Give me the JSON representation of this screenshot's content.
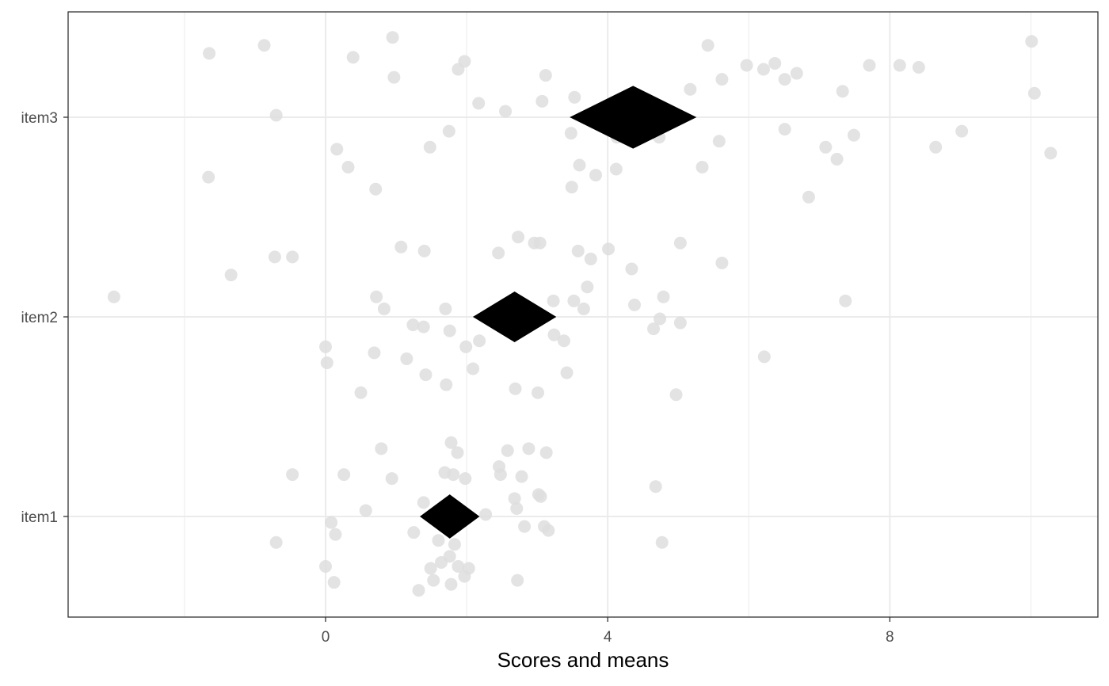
{
  "chart_data": {
    "type": "scatter",
    "title": "",
    "xlabel": "Scores and means",
    "ylabel": "",
    "xlim": [
      -3.65,
      10.95
    ],
    "x_ticks": [
      0,
      4,
      8
    ],
    "x_tick_labels": [
      "0",
      "4",
      "8"
    ],
    "categories": [
      "item1",
      "item2",
      "item3"
    ],
    "grid": true,
    "legend": "none",
    "colors": {
      "points": "#dedede",
      "means": "#000000",
      "grid": "#ebebeb",
      "panel_border": "#333333",
      "tick_text": "#4d4d4d"
    },
    "means": [
      {
        "category": "item1",
        "x": 1.76
      },
      {
        "category": "item2",
        "x": 2.68
      },
      {
        "category": "item3",
        "x": 4.36
      }
    ],
    "series": [
      {
        "category": "item1",
        "points": [
          [
            1.78,
            0.37
          ],
          [
            1.87,
            0.32
          ],
          [
            0.79,
            0.34
          ],
          [
            2.58,
            0.33
          ],
          [
            2.88,
            0.34
          ],
          [
            3.13,
            0.32
          ],
          [
            -0.47,
            0.21
          ],
          [
            0.26,
            0.21
          ],
          [
            0.94,
            0.19
          ],
          [
            1.69,
            0.22
          ],
          [
            1.81,
            0.21
          ],
          [
            1.98,
            0.19
          ],
          [
            2.46,
            0.25
          ],
          [
            2.48,
            0.21
          ],
          [
            2.78,
            0.2
          ],
          [
            4.68,
            0.15
          ],
          [
            3.02,
            0.11
          ],
          [
            3.05,
            0.1
          ],
          [
            2.68,
            0.09
          ],
          [
            1.39,
            0.07
          ],
          [
            0.57,
            0.03
          ],
          [
            2.27,
            0.01
          ],
          [
            2.71,
            0.04
          ],
          [
            0.08,
            -0.03
          ],
          [
            0.14,
            -0.09
          ],
          [
            1.25,
            -0.08
          ],
          [
            2.82,
            -0.05
          ],
          [
            3.1,
            -0.05
          ],
          [
            3.16,
            -0.07
          ],
          [
            -0.7,
            -0.13
          ],
          [
            1.6,
            -0.12
          ],
          [
            1.83,
            -0.14
          ],
          [
            4.77,
            -0.13
          ],
          [
            0.0,
            -0.25
          ],
          [
            0.12,
            -0.33
          ],
          [
            1.49,
            -0.26
          ],
          [
            1.53,
            -0.32
          ],
          [
            1.64,
            -0.23
          ],
          [
            1.76,
            -0.2
          ],
          [
            1.88,
            -0.25
          ],
          [
            2.03,
            -0.26
          ],
          [
            1.97,
            -0.3
          ],
          [
            1.32,
            -0.37
          ],
          [
            1.78,
            -0.34
          ],
          [
            2.72,
            -0.32
          ]
        ]
      },
      {
        "category": "item2",
        "points": [
          [
            -3.0,
            0.1
          ],
          [
            -1.34,
            0.21
          ],
          [
            -0.72,
            0.3
          ],
          [
            -0.47,
            0.3
          ],
          [
            1.07,
            0.35
          ],
          [
            1.4,
            0.33
          ],
          [
            2.45,
            0.32
          ],
          [
            2.73,
            0.4
          ],
          [
            2.96,
            0.37
          ],
          [
            3.04,
            0.37
          ],
          [
            3.58,
            0.33
          ],
          [
            3.76,
            0.29
          ],
          [
            4.01,
            0.34
          ],
          [
            5.03,
            0.37
          ],
          [
            5.62,
            0.27
          ],
          [
            4.34,
            0.24
          ],
          [
            0.72,
            0.1
          ],
          [
            0.83,
            0.04
          ],
          [
            1.7,
            0.04
          ],
          [
            3.23,
            0.08
          ],
          [
            3.52,
            0.08
          ],
          [
            3.66,
            0.04
          ],
          [
            3.71,
            0.15
          ],
          [
            4.38,
            0.06
          ],
          [
            4.79,
            0.1
          ],
          [
            7.37,
            0.08
          ],
          [
            1.24,
            -0.04
          ],
          [
            1.39,
            -0.05
          ],
          [
            1.76,
            -0.07
          ],
          [
            2.18,
            -0.12
          ],
          [
            1.99,
            -0.15
          ],
          [
            3.24,
            -0.09
          ],
          [
            3.38,
            -0.12
          ],
          [
            4.65,
            -0.06
          ],
          [
            4.74,
            -0.01
          ],
          [
            5.03,
            -0.03
          ],
          [
            0.0,
            -0.15
          ],
          [
            0.02,
            -0.23
          ],
          [
            0.69,
            -0.18
          ],
          [
            1.15,
            -0.21
          ],
          [
            2.09,
            -0.26
          ],
          [
            1.42,
            -0.29
          ],
          [
            1.71,
            -0.34
          ],
          [
            3.42,
            -0.28
          ],
          [
            6.22,
            -0.2
          ],
          [
            0.5,
            -0.38
          ],
          [
            2.69,
            -0.36
          ],
          [
            3.01,
            -0.38
          ],
          [
            4.97,
            -0.39
          ]
        ]
      },
      {
        "category": "item3",
        "points": [
          [
            -1.65,
            0.32
          ],
          [
            -0.87,
            0.36
          ],
          [
            0.39,
            0.3
          ],
          [
            0.95,
            0.4
          ],
          [
            0.97,
            0.2
          ],
          [
            1.88,
            0.24
          ],
          [
            1.97,
            0.28
          ],
          [
            3.12,
            0.21
          ],
          [
            5.42,
            0.36
          ],
          [
            5.97,
            0.26
          ],
          [
            6.21,
            0.24
          ],
          [
            6.37,
            0.27
          ],
          [
            6.51,
            0.19
          ],
          [
            6.68,
            0.22
          ],
          [
            7.71,
            0.26
          ],
          [
            8.14,
            0.26
          ],
          [
            8.41,
            0.25
          ],
          [
            10.01,
            0.38
          ],
          [
            10.05,
            0.12
          ],
          [
            7.33,
            0.13
          ],
          [
            5.62,
            0.19
          ],
          [
            5.17,
            0.14
          ],
          [
            3.53,
            0.1
          ],
          [
            3.07,
            0.08
          ],
          [
            2.17,
            0.07
          ],
          [
            2.55,
            0.03
          ],
          [
            -0.7,
            0.01
          ],
          [
            1.75,
            -0.07
          ],
          [
            3.48,
            -0.08
          ],
          [
            4.13,
            -0.1
          ],
          [
            4.73,
            -0.1
          ],
          [
            5.58,
            -0.12
          ],
          [
            6.51,
            -0.06
          ],
          [
            7.49,
            -0.09
          ],
          [
            9.02,
            -0.07
          ],
          [
            1.48,
            -0.15
          ],
          [
            0.16,
            -0.16
          ],
          [
            0.32,
            -0.25
          ],
          [
            0.71,
            -0.36
          ],
          [
            -1.66,
            -0.3
          ],
          [
            3.6,
            -0.24
          ],
          [
            3.83,
            -0.29
          ],
          [
            4.12,
            -0.26
          ],
          [
            5.34,
            -0.25
          ],
          [
            7.09,
            -0.15
          ],
          [
            7.25,
            -0.21
          ],
          [
            8.65,
            -0.15
          ],
          [
            10.28,
            -0.18
          ],
          [
            3.49,
            -0.35
          ],
          [
            6.85,
            -0.4
          ]
        ]
      }
    ]
  }
}
